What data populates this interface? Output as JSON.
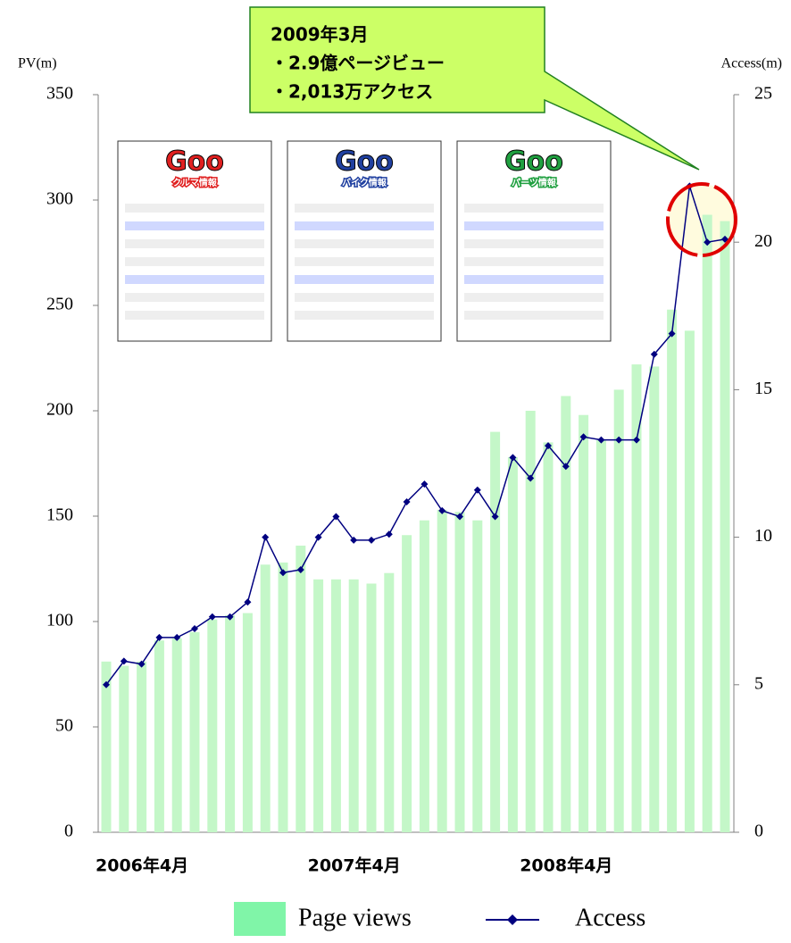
{
  "chart_data": {
    "type": "bar-line",
    "ylabel": "PV(m)",
    "y2label": "Access(m)",
    "categories": [
      "2006年4月",
      null,
      null,
      null,
      null,
      null,
      null,
      null,
      null,
      null,
      null,
      null,
      "2007年4月",
      null,
      null,
      null,
      null,
      null,
      null,
      null,
      null,
      null,
      null,
      null,
      "2008年4月",
      null,
      null,
      null,
      null,
      null,
      null,
      null,
      null,
      null,
      null,
      null
    ],
    "series": [
      {
        "name": "Page views",
        "type": "bar",
        "color": "#c4f7c8",
        "values": [
          81,
          79,
          81,
          91,
          92,
          95,
          101,
          103,
          104,
          127,
          128,
          136,
          120,
          120,
          120,
          118,
          123,
          141,
          148,
          153,
          152,
          148,
          190,
          178,
          200,
          185,
          207,
          198,
          186,
          210,
          222,
          221,
          248,
          238,
          293,
          290
        ]
      },
      {
        "name": "Access",
        "type": "line",
        "axis": "y2",
        "color": "#000080",
        "values": [
          5.0,
          5.8,
          5.7,
          6.6,
          6.6,
          6.9,
          7.3,
          7.3,
          7.8,
          10.0,
          8.8,
          8.9,
          10.0,
          10.7,
          9.9,
          9.9,
          10.1,
          11.2,
          11.8,
          10.9,
          10.7,
          11.6,
          10.7,
          12.7,
          12.0,
          13.1,
          12.4,
          13.4,
          13.3,
          13.3,
          13.3,
          16.2,
          16.9,
          21.9,
          20.0,
          20.1
        ]
      }
    ],
    "ylim": [
      0,
      350
    ],
    "yticks": [
      0,
      50,
      100,
      150,
      200,
      250,
      300,
      350
    ],
    "y2lim": [
      0,
      25
    ],
    "y2ticks": [
      0,
      5,
      10,
      15,
      20,
      25
    ],
    "annotation": [
      "2009年3月",
      "・2.9億ページビュー",
      "・2,013万アクセス"
    ],
    "insets": [
      {
        "logo": "Goo",
        "label": "クルマ情報"
      },
      {
        "logo": "Goo",
        "label": "バイク情報"
      },
      {
        "logo": "Goo",
        "label": "パーツ情報"
      }
    ]
  }
}
